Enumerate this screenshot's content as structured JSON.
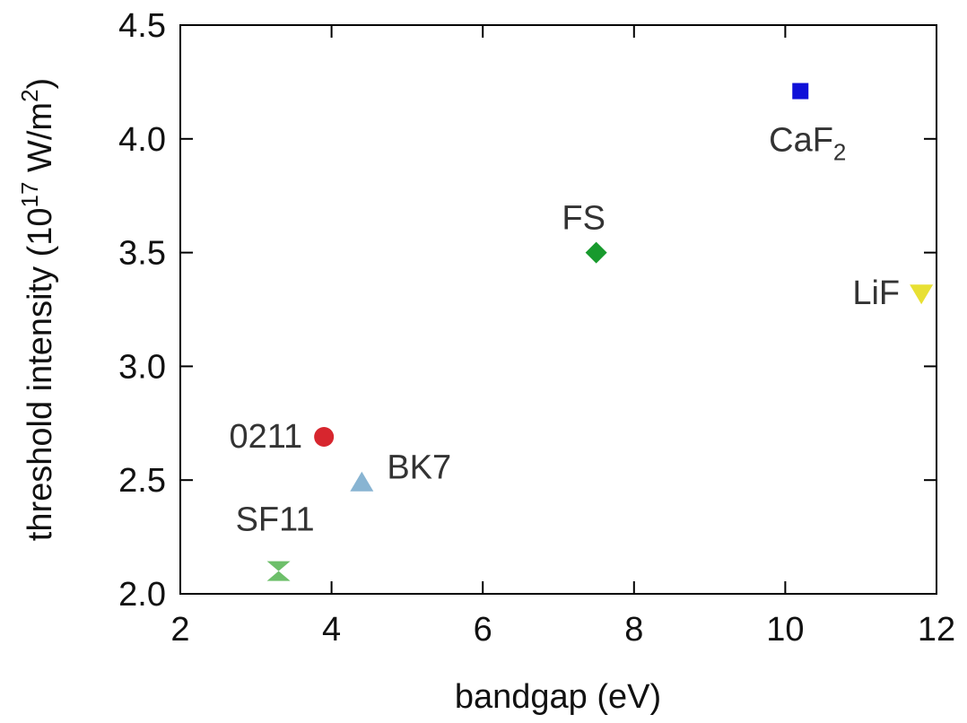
{
  "chart_data": {
    "type": "scatter",
    "title": "",
    "xlabel": "bandgap (eV)",
    "ylabel": {
      "prefix": "threshold intensity (10",
      "sup": "17",
      "mid": " W/m",
      "sup2": "2",
      "suffix": ")"
    },
    "xlim": [
      2,
      12
    ],
    "ylim": [
      2.0,
      4.5
    ],
    "xticks": [
      2,
      4,
      6,
      8,
      10,
      12
    ],
    "xtick_labels": [
      "2",
      "4",
      "6",
      "8",
      "10",
      "12"
    ],
    "yticks": [
      2.0,
      2.5,
      3.0,
      3.5,
      4.0,
      4.5
    ],
    "ytick_labels": [
      "2.0",
      "2.5",
      "3.0",
      "3.5",
      "4.0",
      "4.5"
    ],
    "grid": false,
    "legend": "none",
    "points": [
      {
        "label": "CaF",
        "label_sub": "2",
        "x": 10.2,
        "y": 4.21,
        "marker": "square",
        "color": "#0f10d8",
        "label_pos": "below"
      },
      {
        "label": "FS",
        "label_sub": "",
        "x": 7.5,
        "y": 3.5,
        "marker": "diamond",
        "color": "#189a2d",
        "label_pos": "above-left"
      },
      {
        "label": "LiF",
        "label_sub": "",
        "x": 11.8,
        "y": 3.32,
        "marker": "triangle-down",
        "color": "#e8e033",
        "label_pos": "left"
      },
      {
        "label": "0211",
        "label_sub": "",
        "x": 3.9,
        "y": 2.69,
        "marker": "circle",
        "color": "#d7262e",
        "label_pos": "left"
      },
      {
        "label": "BK7",
        "label_sub": "",
        "x": 4.4,
        "y": 2.49,
        "marker": "triangle-up",
        "color": "#88b4d2",
        "label_pos": "right"
      },
      {
        "label": "SF11",
        "label_sub": "",
        "x": 3.3,
        "y": 2.1,
        "marker": "hourglass",
        "color": "#6dbf6a",
        "label_pos": "above"
      }
    ]
  }
}
